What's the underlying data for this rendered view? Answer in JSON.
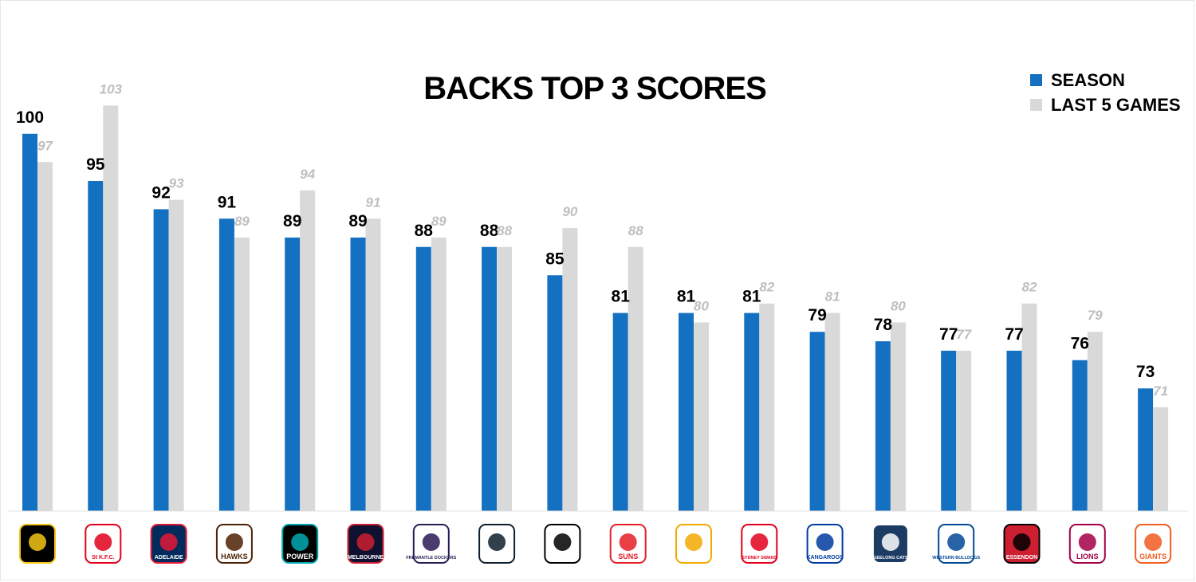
{
  "chart_data": {
    "type": "bar",
    "title": "BACKS TOP 3 SCORES",
    "categories": [
      "Richmond",
      "St Kilda",
      "Adelaide",
      "Hawthorn",
      "Port Adelaide",
      "Melbourne",
      "Fremantle",
      "Carlton",
      "Collingwood",
      "Gold Coast",
      "West Coast",
      "Sydney",
      "North Melbourne",
      "Geelong",
      "Western Bulldogs",
      "Essendon",
      "Brisbane",
      "GWS"
    ],
    "series": [
      {
        "name": "SEASON",
        "color": "#1470c0",
        "values": [
          100,
          95,
          92,
          91,
          89,
          89,
          88,
          88,
          85,
          81,
          81,
          81,
          79,
          78,
          77,
          77,
          76,
          73
        ]
      },
      {
        "name": "LAST 5 GAMES",
        "color": "#d9d9d9",
        "values": [
          97,
          103,
          93,
          89,
          94,
          91,
          89,
          88,
          90,
          88,
          80,
          82,
          81,
          80,
          77,
          82,
          79,
          71
        ]
      }
    ],
    "ylim": [
      60,
      105
    ],
    "xlabel": "",
    "ylabel": "",
    "legend_position": "top-right",
    "grid": false
  },
  "logos": [
    {
      "team": "Richmond",
      "text": "",
      "icon": "tiger-icon",
      "bg": "#000000",
      "fg": "#f5c518"
    },
    {
      "team": "St Kilda",
      "text": "St K.F.C.",
      "icon": "cross-icon",
      "bg": "#ffffff",
      "fg": "#e2001a"
    },
    {
      "team": "Adelaide",
      "text": "ADELAIDE",
      "icon": "crow-icon",
      "bg": "#002b5c",
      "fg": "#e21937"
    },
    {
      "team": "Hawthorn",
      "text": "HAWKS",
      "icon": "hawk-icon",
      "bg": "#ffffff",
      "fg": "#4d2004"
    },
    {
      "team": "Port Adelaide",
      "text": "POWER",
      "icon": "power-icon",
      "bg": "#000000",
      "fg": "#00a9b0"
    },
    {
      "team": "Melbourne",
      "text": "MELBOURNE",
      "icon": "demon-icon",
      "bg": "#0f1131",
      "fg": "#cc2031"
    },
    {
      "team": "Fremantle",
      "text": "FREMANTLE DOCKERS",
      "icon": "anchor-icon",
      "bg": "#ffffff",
      "fg": "#2a1a54"
    },
    {
      "team": "Carlton",
      "text": "",
      "icon": "cfc-monogram-icon",
      "bg": "#ffffff",
      "fg": "#0e1e2d"
    },
    {
      "team": "Collingwood",
      "text": "",
      "icon": "magpie-icon",
      "bg": "#ffffff",
      "fg": "#000000"
    },
    {
      "team": "Gold Coast",
      "text": "SUNS",
      "icon": "sun-icon",
      "bg": "#ffffff",
      "fg": "#e41e26"
    },
    {
      "team": "West Coast",
      "text": "",
      "icon": "eagle-icon",
      "bg": "#ffffff",
      "fg": "#f2a900"
    },
    {
      "team": "Sydney",
      "text": "SYDNEY SWANS",
      "icon": "swan-icon",
      "bg": "#ffffff",
      "fg": "#e2001a"
    },
    {
      "team": "North Melbourne",
      "text": "KANGAROOS",
      "icon": "kangaroo-icon",
      "bg": "#ffffff",
      "fg": "#013b9f"
    },
    {
      "team": "Geelong",
      "text": "GEELONG CATS",
      "icon": "cat-icon",
      "bg": "#1c3c63",
      "fg": "#ffffff"
    },
    {
      "team": "Western Bulldogs",
      "text": "WESTERN BULLDOGS",
      "icon": "bulldog-icon",
      "bg": "#ffffff",
      "fg": "#014896"
    },
    {
      "team": "Essendon",
      "text": "ESSENDON",
      "icon": "plane-icon",
      "bg": "#cc2031",
      "fg": "#000000"
    },
    {
      "team": "Brisbane",
      "text": "LIONS",
      "icon": "lion-icon",
      "bg": "#ffffff",
      "fg": "#a30046"
    },
    {
      "team": "GWS",
      "text": "GIANTS",
      "icon": "giants-g-icon",
      "bg": "#ffffff",
      "fg": "#f15c22"
    }
  ]
}
